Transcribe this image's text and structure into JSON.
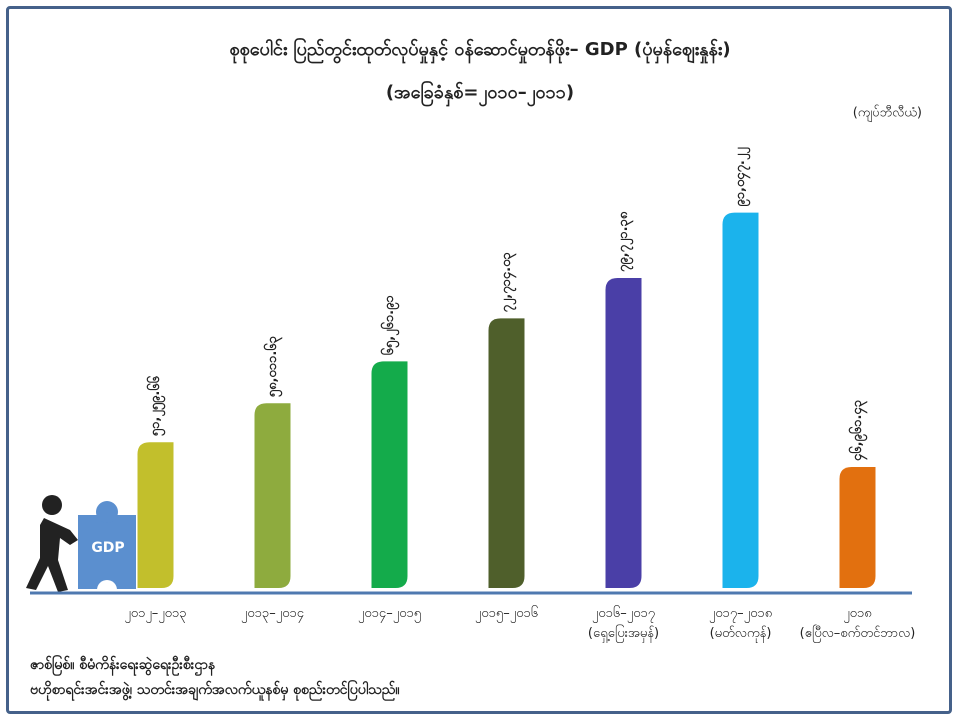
{
  "chart_data": {
    "type": "bar",
    "title": "စုစုပေါင်း ပြည်တွင်းထုတ်လုပ်မှုနှင့် ဝန်ဆောင်မှုတန်ဖိုး– GDP (ပုံမှန်ဈေးနှုန်း)",
    "subtitle": "(အခြေခံနှစ်=၂၀၁၀–၂၀၁၁)",
    "unit": "(ကျပ်ဘီလီယံ)",
    "categories": [
      "၂၀၁၂–၂၀၁၃",
      "၂၀၁၃–၂၀၁၄",
      "၂၀၁၄–၂၀၁၅",
      "၂၀၁၅–၂၀၁၆",
      "၂၀၁၆–၂၀၁၇\n(ရှေ့ပြေးအမှန်)",
      "၂၀၁၇–၂၀၁၈\n(မတ်လကုန်)",
      "၂၀၁၈\n(ဧပြီလ–စက်တင်ဘာလ)"
    ],
    "values": [
      51259.66,
      58011.63,
      65261.91,
      72714.03,
      79721.38,
      91047.22,
      46961.43
    ],
    "value_labels": [
      "၅၁,၂၅၉.၆၆",
      "၅၈,၀၁၁.၆၃",
      "၆၅,၂၆၁.၉၁",
      "၇၂,၇၁၄.၀၃",
      "၇၉,၇၂၁.၃၈",
      "၉၁,၀၄၇.၂၂",
      "၄၆,၉၆၁.၄၃"
    ],
    "colors": [
      "#c2bf2c",
      "#8eab3e",
      "#14ab4b",
      "#4f5f2b",
      "#4a3fa7",
      "#1bb3ec",
      "#e2700f"
    ],
    "ylim": [
      26000,
      96000
    ],
    "icon_label": "GDP",
    "source": [
      "ဇာစ်မြစ်။ စီမံကိန်းရေးဆွဲရေးဦးစီးဌာန",
      "ဗဟိုစာရင်းအင်းအဖွဲ့၊ သတင်းအချက်အလက်ယူနစ်မှ စုစည်းတင်ပြပါသည်။"
    ]
  }
}
